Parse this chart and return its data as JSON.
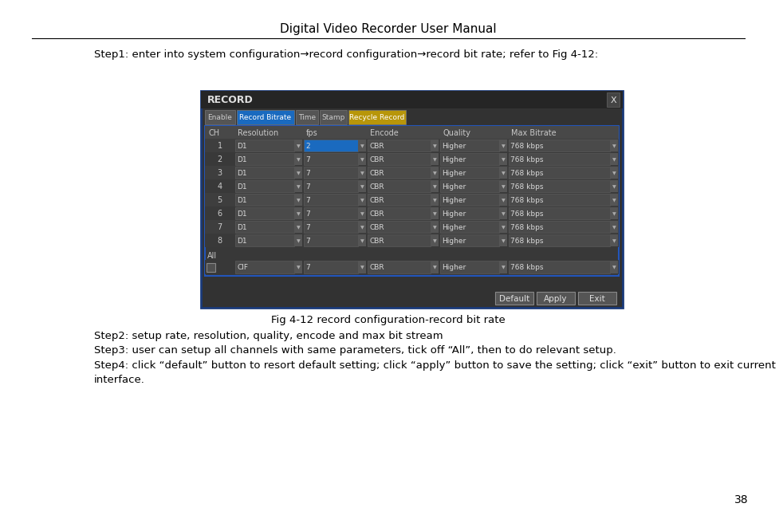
{
  "title": "Digital Video Recorder User Manual",
  "step1_text": "Step1: enter into system configuration→record configuration→record bit rate; refer to Fig 4-12:",
  "step2_text": "Step2: setup rate, resolution, quality, encode and max bit stream",
  "step3_text": "Step3: user can setup all channels with same parameters, tick off “All”, then to do relevant setup.",
  "step4_line1": "Step4: click “default” button to resort default setting; click “apply” button to save the setting; click “exit” button to exit current",
  "step4_line2": "interface.",
  "fig_caption": "Fig 4-12 record configuration-record bit rate",
  "page_number": "38",
  "dialog_title": "RECORD",
  "tabs": [
    "Enable",
    "Record Bitrate",
    "Time",
    "Stamp",
    "Recycle Record"
  ],
  "active_tab": "Record Bitrate",
  "highlighted_tab": "Recycle Record",
  "col_headers": [
    "CH",
    "Resolution",
    "fps",
    "Encode",
    "Quality",
    "Max Bitrate"
  ],
  "rows": [
    [
      "1",
      "D1",
      "2",
      "CBR",
      "Higher",
      "768 kbps"
    ],
    [
      "2",
      "D1",
      "7",
      "CBR",
      "Higher",
      "768 kbps"
    ],
    [
      "3",
      "D1",
      "7",
      "CBR",
      "Higher",
      "768 kbps"
    ],
    [
      "4",
      "D1",
      "7",
      "CBR",
      "Higher",
      "768 kbps"
    ],
    [
      "5",
      "D1",
      "7",
      "CBR",
      "Higher",
      "768 kbps"
    ],
    [
      "6",
      "D1",
      "7",
      "CBR",
      "Higher",
      "768 kbps"
    ],
    [
      "7",
      "D1",
      "7",
      "CBR",
      "Higher",
      "768 kbps"
    ],
    [
      "8",
      "D1",
      "7",
      "CBR",
      "Higher",
      "768 kbps"
    ]
  ],
  "buttons": [
    "Default",
    "Apply",
    "Exit"
  ],
  "bg_color": "#ffffff",
  "col_props": [
    0.072,
    0.165,
    0.155,
    0.175,
    0.165,
    0.268
  ]
}
